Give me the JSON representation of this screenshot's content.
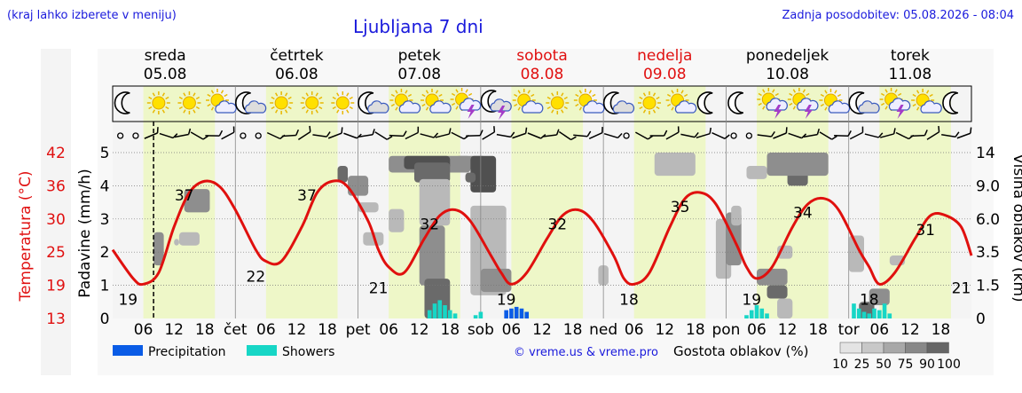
{
  "header": {
    "hint": "(kraj lahko izberete v meniju)",
    "title": "Ljubljana 7 dni",
    "updated": "Zadnja posodobitev: 05.08.2026 - 08:04",
    "copyright": "© vreme.us & vreme.pro"
  },
  "colors": {
    "day_band": "#eef7c8",
    "night_band": "#f4f4f4",
    "temp_line": "#e0100e",
    "precipitation": "#0a5ce6",
    "showers": "#17d6c6",
    "title": "#1a1adc",
    "weekend": "#e01010"
  },
  "days": [
    {
      "name": "sreda",
      "date": "05.08",
      "weekend": false,
      "short": ""
    },
    {
      "name": "četrtek",
      "date": "06.08",
      "weekend": false,
      "short": "čet"
    },
    {
      "name": "petek",
      "date": "07.08",
      "weekend": false,
      "short": "pet"
    },
    {
      "name": "sobota",
      "date": "08.08",
      "weekend": true,
      "short": "sob"
    },
    {
      "name": "nedelja",
      "date": "09.08",
      "weekend": true,
      "short": "ned"
    },
    {
      "name": "ponedeljek",
      "date": "10.08",
      "weekend": false,
      "short": "pon"
    },
    {
      "name": "torek",
      "date": "11.08",
      "weekend": false,
      "short": "tor"
    }
  ],
  "hour_ticks": [
    "06",
    "12",
    "18"
  ],
  "icons": [
    [
      "moon-icon",
      "sun-icon",
      "sun-icon",
      "partly-cloudy-icon"
    ],
    [
      "moon-cloud-icon",
      "sun-icon",
      "sun-icon",
      "sun-icon"
    ],
    [
      "moon-cloud-icon",
      "partly-cloudy-icon",
      "partly-cloudy-icon",
      "thunder-icon"
    ],
    [
      "moon-thunder-icon",
      "partly-cloudy-icon",
      "sun-icon",
      "partly-cloudy-icon"
    ],
    [
      "moon-cloud-icon",
      "sun-icon",
      "partly-cloudy-icon",
      "moon-icon"
    ],
    [
      "moon-icon",
      "thunder-icon",
      "thunder-icon",
      "partly-cloudy-icon"
    ],
    [
      "moon-cloud-icon",
      "thunder-icon",
      "partly-cloudy-icon",
      "moon-icon"
    ]
  ],
  "legend": {
    "precipitation": "Precipitation",
    "showers": "Showers",
    "cloud_density_title": "Gostota oblakov (%)",
    "cloud_density_levels": [
      "10",
      "25",
      "50",
      "75",
      "90",
      "100"
    ]
  },
  "chart_data": {
    "type": "line",
    "x_unit": "hours since 05.08 00:00",
    "now_marker": 8,
    "temperature": {
      "ylabel": "Temperatura (°C)",
      "ticks": [
        "42",
        "36",
        "30",
        "25",
        "19",
        "13"
      ],
      "ylim": [
        13,
        42
      ],
      "x": [
        0,
        4,
        6,
        9,
        12,
        15,
        18,
        21,
        24,
        28,
        30,
        33,
        37,
        40,
        43,
        46,
        50,
        52,
        54,
        57,
        61,
        64,
        67,
        70,
        74,
        76,
        78,
        81,
        85,
        88,
        91,
        94,
        98,
        100,
        102,
        105,
        109,
        112,
        115,
        118,
        122,
        124,
        126,
        129,
        133,
        136,
        139,
        142,
        146,
        148,
        150,
        153,
        157,
        160,
        163,
        166,
        168
      ],
      "y": [
        25,
        20,
        19,
        21,
        29,
        35,
        37,
        36,
        32,
        25,
        23,
        23,
        29,
        35,
        37,
        36,
        30,
        25,
        22,
        21,
        27,
        31,
        32,
        30,
        24,
        21,
        19,
        21,
        27,
        31,
        32,
        30,
        24,
        20,
        19,
        21,
        29,
        34,
        35,
        33,
        26,
        22,
        20,
        22,
        29,
        33,
        34,
        32,
        25,
        22,
        19,
        21,
        27,
        31,
        31,
        29,
        24
      ],
      "labels": [
        {
          "x": 3,
          "y": 19,
          "text": "19"
        },
        {
          "x": 14,
          "y": 37,
          "text": "37"
        },
        {
          "x": 28,
          "y": 23,
          "text": "22"
        },
        {
          "x": 38,
          "y": 37,
          "text": "37"
        },
        {
          "x": 52,
          "y": 21,
          "text": "21"
        },
        {
          "x": 62,
          "y": 32,
          "text": "32"
        },
        {
          "x": 77,
          "y": 19,
          "text": "19"
        },
        {
          "x": 87,
          "y": 32,
          "text": "32"
        },
        {
          "x": 101,
          "y": 19,
          "text": "18"
        },
        {
          "x": 111,
          "y": 35,
          "text": "35"
        },
        {
          "x": 125,
          "y": 19,
          "text": "19"
        },
        {
          "x": 135,
          "y": 34,
          "text": "34"
        },
        {
          "x": 148,
          "y": 19,
          "text": "18"
        },
        {
          "x": 159,
          "y": 31,
          "text": "31"
        },
        {
          "x": 166,
          "y": 21,
          "text": "21"
        }
      ]
    },
    "precipitation": {
      "ylabel": "Padavine (mm/h)",
      "ticks": [
        "5",
        "4",
        "3",
        "2",
        "1",
        "0"
      ],
      "ylim": [
        0,
        5
      ],
      "precip_bars": [
        [
          77,
          0.25
        ],
        [
          78,
          0.3
        ],
        [
          79,
          0.35
        ],
        [
          80,
          0.3
        ],
        [
          81,
          0.2
        ]
      ],
      "shower_bars": [
        [
          62,
          0.25
        ],
        [
          63,
          0.45
        ],
        [
          64,
          0.55
        ],
        [
          65,
          0.4
        ],
        [
          66,
          0.25
        ],
        [
          67,
          0.15
        ],
        [
          71,
          0.1
        ],
        [
          72,
          0.2
        ],
        [
          124,
          0.1
        ],
        [
          125,
          0.25
        ],
        [
          126,
          0.4
        ],
        [
          127,
          0.3
        ],
        [
          128,
          0.15
        ],
        [
          145,
          0.45
        ],
        [
          146,
          0.3
        ],
        [
          147,
          0.2
        ],
        [
          148,
          0.15
        ],
        [
          149,
          0.3
        ],
        [
          150,
          0.25
        ],
        [
          151,
          0.45
        ],
        [
          152,
          0.15
        ]
      ]
    },
    "cloud_height": {
      "ylabel": "Višina oblakov (km)",
      "ticks": [
        "14",
        "9.0",
        "6.0",
        "3.5",
        "1.5",
        "0"
      ]
    },
    "clouds": [
      [
        14,
        19,
        3.2,
        3.9,
        2
      ],
      [
        13,
        17,
        2.2,
        2.6,
        1
      ],
      [
        8,
        10,
        1.6,
        2.6,
        2
      ],
      [
        12,
        13,
        2.2,
        2.4,
        1
      ],
      [
        44,
        46,
        4.1,
        4.6,
        3
      ],
      [
        46,
        50,
        3.7,
        4.3,
        2
      ],
      [
        48,
        52,
        3.2,
        3.5,
        1
      ],
      [
        49,
        53,
        2.2,
        2.6,
        1
      ],
      [
        54,
        70,
        4.4,
        4.9,
        2
      ],
      [
        57,
        66,
        4.5,
        4.9,
        4
      ],
      [
        59,
        66,
        4.1,
        4.7,
        3
      ],
      [
        60,
        66,
        2.8,
        4.2,
        1
      ],
      [
        60,
        65,
        1.0,
        2.8,
        2
      ],
      [
        61,
        66,
        0.0,
        1.2,
        3
      ],
      [
        54,
        57,
        2.6,
        3.3,
        1
      ],
      [
        67,
        73,
        4.5,
        4.9,
        2
      ],
      [
        70,
        75,
        3.8,
        4.9,
        4
      ],
      [
        69,
        71,
        4.1,
        4.4,
        3
      ],
      [
        70,
        77,
        0.7,
        3.4,
        1
      ],
      [
        72,
        78,
        0.8,
        1.5,
        2
      ],
      [
        108,
        112,
        4.5,
        4.8,
        3
      ],
      [
        106,
        114,
        4.3,
        5.0,
        1
      ],
      [
        124,
        128,
        4.2,
        4.6,
        1
      ],
      [
        132,
        136,
        4.0,
        4.7,
        3
      ],
      [
        128,
        140,
        4.3,
        5.0,
        2
      ],
      [
        118,
        121,
        1.2,
        3.0,
        1
      ],
      [
        120,
        123,
        1.6,
        3.2,
        2
      ],
      [
        121,
        123,
        2.8,
        3.4,
        1
      ],
      [
        126,
        132,
        1.0,
        1.5,
        2
      ],
      [
        128,
        132,
        0.6,
        1.0,
        3
      ],
      [
        130,
        133,
        1.8,
        2.2,
        1
      ],
      [
        95,
        97,
        1.0,
        1.6,
        1
      ],
      [
        130,
        133,
        0.0,
        0.6,
        1
      ],
      [
        144,
        147,
        1.4,
        2.5,
        1
      ],
      [
        146,
        149,
        0.0,
        0.5,
        3
      ],
      [
        148,
        152,
        0.4,
        0.9,
        2
      ],
      [
        152,
        155,
        1.6,
        1.9,
        1
      ]
    ]
  }
}
